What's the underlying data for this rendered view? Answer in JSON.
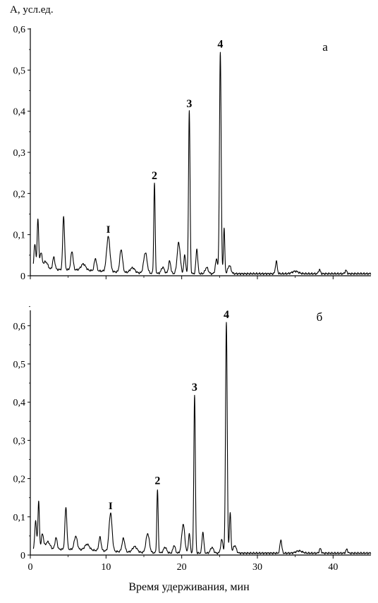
{
  "figure": {
    "ylabel": "A, усл.ед.",
    "xlabel": "Время удерживания, мин"
  },
  "chart_data": [
    {
      "type": "line",
      "panel_label": "а",
      "xlim": [
        0,
        45
      ],
      "ylim": [
        0,
        0.6
      ],
      "x_ticks": [
        0,
        10,
        20,
        30,
        40
      ],
      "y_ticks": [
        "0",
        "0,1",
        "0,2",
        "0,3",
        "0,4",
        "0,5",
        "0,6"
      ],
      "y_tick_values": [
        0,
        0.1,
        0.2,
        0.3,
        0.4,
        0.5,
        0.6
      ],
      "baseline": 0.005,
      "peaks": [
        {
          "x": 0.6,
          "y": 0.065,
          "w": 0.12
        },
        {
          "x": 1.0,
          "y": 0.125,
          "w": 0.1
        },
        {
          "x": 1.4,
          "y": 0.04,
          "w": 0.15
        },
        {
          "x": 2.0,
          "y": 0.02,
          "w": 0.3
        },
        {
          "x": 3.1,
          "y": 0.03,
          "w": 0.15
        },
        {
          "x": 4.4,
          "y": 0.13,
          "w": 0.12
        },
        {
          "x": 5.5,
          "y": 0.045,
          "w": 0.15
        },
        {
          "x": 7.0,
          "y": 0.015,
          "w": 0.3
        },
        {
          "x": 8.6,
          "y": 0.03,
          "w": 0.15
        },
        {
          "x": 10.3,
          "y": 0.085,
          "w": 0.22
        },
        {
          "x": 12.0,
          "y": 0.055,
          "w": 0.18
        },
        {
          "x": 13.5,
          "y": 0.012,
          "w": 0.3
        },
        {
          "x": 15.2,
          "y": 0.05,
          "w": 0.22
        },
        {
          "x": 16.4,
          "y": 0.22,
          "w": 0.09
        },
        {
          "x": 17.5,
          "y": 0.015,
          "w": 0.2
        },
        {
          "x": 18.4,
          "y": 0.03,
          "w": 0.15
        },
        {
          "x": 19.6,
          "y": 0.075,
          "w": 0.2
        },
        {
          "x": 20.4,
          "y": 0.045,
          "w": 0.12
        },
        {
          "x": 21.0,
          "y": 0.395,
          "w": 0.1
        },
        {
          "x": 22.0,
          "y": 0.06,
          "w": 0.12
        },
        {
          "x": 23.3,
          "y": 0.015,
          "w": 0.2
        },
        {
          "x": 24.6,
          "y": 0.035,
          "w": 0.15
        },
        {
          "x": 25.1,
          "y": 0.54,
          "w": 0.11
        },
        {
          "x": 25.6,
          "y": 0.11,
          "w": 0.09
        },
        {
          "x": 26.3,
          "y": 0.02,
          "w": 0.2
        },
        {
          "x": 32.5,
          "y": 0.03,
          "w": 0.12
        },
        {
          "x": 35.0,
          "y": 0.006,
          "w": 0.4
        },
        {
          "x": 38.2,
          "y": 0.01,
          "w": 0.12
        },
        {
          "x": 41.7,
          "y": 0.008,
          "w": 0.12
        }
      ],
      "annotations": [
        {
          "text": "I",
          "x": 10.3,
          "y": 0.105
        },
        {
          "text": "2",
          "x": 16.4,
          "y": 0.235
        },
        {
          "text": "3",
          "x": 21.0,
          "y": 0.41
        },
        {
          "text": "4",
          "x": 25.1,
          "y": 0.555
        }
      ]
    },
    {
      "type": "line",
      "panel_label": "б",
      "xlim": [
        0,
        45
      ],
      "ylim": [
        0,
        0.65
      ],
      "x_ticks": [
        0,
        10,
        20,
        30,
        40
      ],
      "y_ticks": [
        "0",
        "0,1",
        "0,2",
        "0,3",
        "0,4",
        "0,5",
        "0,6"
      ],
      "y_tick_values": [
        0,
        0.1,
        0.2,
        0.3,
        0.4,
        0.5,
        0.6
      ],
      "baseline": 0.005,
      "peaks": [
        {
          "x": 0.7,
          "y": 0.075,
          "w": 0.12
        },
        {
          "x": 1.1,
          "y": 0.125,
          "w": 0.1
        },
        {
          "x": 1.6,
          "y": 0.04,
          "w": 0.15
        },
        {
          "x": 2.3,
          "y": 0.02,
          "w": 0.3
        },
        {
          "x": 3.4,
          "y": 0.03,
          "w": 0.15
        },
        {
          "x": 4.7,
          "y": 0.11,
          "w": 0.13
        },
        {
          "x": 6.0,
          "y": 0.035,
          "w": 0.2
        },
        {
          "x": 7.5,
          "y": 0.015,
          "w": 0.3
        },
        {
          "x": 9.2,
          "y": 0.035,
          "w": 0.15
        },
        {
          "x": 10.6,
          "y": 0.1,
          "w": 0.2
        },
        {
          "x": 12.3,
          "y": 0.035,
          "w": 0.18
        },
        {
          "x": 13.8,
          "y": 0.015,
          "w": 0.3
        },
        {
          "x": 15.5,
          "y": 0.05,
          "w": 0.22
        },
        {
          "x": 16.8,
          "y": 0.165,
          "w": 0.09
        },
        {
          "x": 17.8,
          "y": 0.015,
          "w": 0.2
        },
        {
          "x": 19.0,
          "y": 0.02,
          "w": 0.15
        },
        {
          "x": 20.2,
          "y": 0.075,
          "w": 0.2
        },
        {
          "x": 21.0,
          "y": 0.05,
          "w": 0.12
        },
        {
          "x": 21.7,
          "y": 0.415,
          "w": 0.1
        },
        {
          "x": 22.8,
          "y": 0.055,
          "w": 0.12
        },
        {
          "x": 24.0,
          "y": 0.015,
          "w": 0.2
        },
        {
          "x": 25.3,
          "y": 0.035,
          "w": 0.15
        },
        {
          "x": 25.9,
          "y": 0.605,
          "w": 0.11
        },
        {
          "x": 26.4,
          "y": 0.105,
          "w": 0.1
        },
        {
          "x": 27.0,
          "y": 0.02,
          "w": 0.2
        },
        {
          "x": 33.1,
          "y": 0.035,
          "w": 0.12
        },
        {
          "x": 35.5,
          "y": 0.006,
          "w": 0.4
        },
        {
          "x": 38.3,
          "y": 0.012,
          "w": 0.12
        },
        {
          "x": 41.8,
          "y": 0.01,
          "w": 0.12
        }
      ],
      "annotations": [
        {
          "text": "I",
          "x": 10.6,
          "y": 0.12
        },
        {
          "text": "2",
          "x": 16.8,
          "y": 0.185
        },
        {
          "text": "3",
          "x": 21.7,
          "y": 0.43
        },
        {
          "text": "4",
          "x": 25.9,
          "y": 0.62
        }
      ]
    }
  ]
}
